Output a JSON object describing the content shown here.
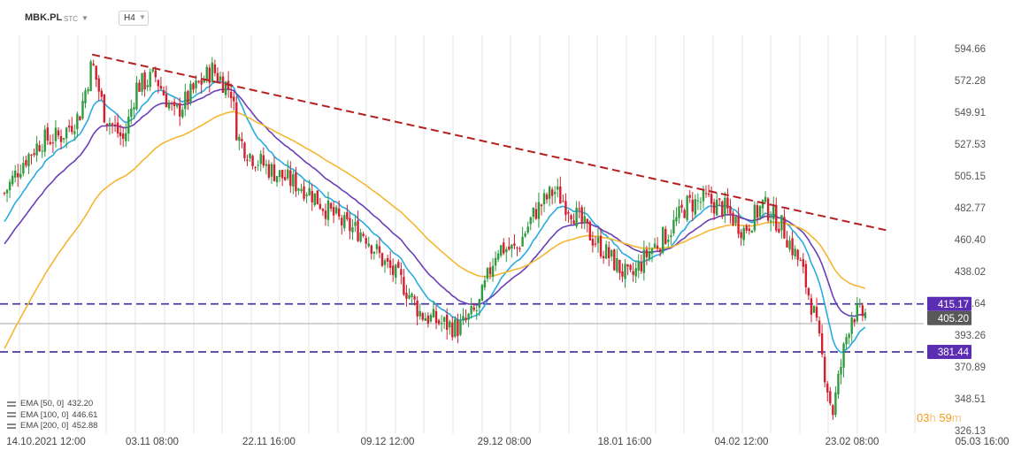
{
  "header": {
    "ticker": "MBK.PL",
    "source": "STC",
    "timeframe": "H4",
    "caret_icon": "chevron-down-icon"
  },
  "legend": [
    {
      "label": "EMA [50, 0]",
      "value": "432.20",
      "icon": "visibility-icon"
    },
    {
      "label": "EMA [100, 0]",
      "value": "446.61",
      "icon": "visibility-icon"
    },
    {
      "label": "EMA [200, 0]",
      "value": "452.88",
      "icon": "visibility-icon"
    }
  ],
  "timer": {
    "hours": "03",
    "h_unit": "h",
    "minutes": "59",
    "m_unit": "m"
  },
  "colors": {
    "bull": "#2e9c3e",
    "bear": "#d2202f",
    "ema50": "#29abe2",
    "ema100": "#6a3fb8",
    "ema200": "#f5b733",
    "trendline": "#b51f1f",
    "level_line": "#4b3aa8",
    "level_badge": "#5b2db3",
    "price_badge": "#595959"
  },
  "chart_data": {
    "type": "candlestick",
    "y_ticks": [
      "594.66",
      "572.28",
      "549.91",
      "527.53",
      "505.15",
      "482.77",
      "460.40",
      "438.02",
      "415.64",
      "393.26",
      "370.89",
      "348.51",
      "326.13"
    ],
    "x_ticks": [
      "14.10.2021  12:00",
      "03.11  08:00",
      "22.11  16:00",
      "09.12  12:00",
      "29.12  08:00",
      "18.01  16:00",
      "04.02  12:00",
      "23.02  08:00",
      "05.03  16:00"
    ],
    "ylim": [
      326.13,
      594.66
    ],
    "current_price": "405.20",
    "levels": [
      {
        "label": "415.17",
        "value": 415.17
      },
      {
        "label": "381.44",
        "value": 381.44
      }
    ],
    "trendline": {
      "from": {
        "x": "2021-10-28",
        "y": 590.5
      },
      "to": {
        "x": "2022-03-03",
        "y": 466.5
      }
    },
    "series": [
      {
        "name": "EMA [50, 0]",
        "value": "432.20"
      },
      {
        "name": "EMA [100, 0]",
        "value": "446.61"
      },
      {
        "name": "EMA [200, 0]",
        "value": "452.88"
      }
    ],
    "price_path": [
      [
        "2021-10-14",
        492
      ],
      [
        "2021-10-17",
        515
      ],
      [
        "2021-10-20",
        530
      ],
      [
        "2021-10-23",
        533
      ],
      [
        "2021-10-26",
        548
      ],
      [
        "2021-10-28",
        585
      ],
      [
        "2021-10-30",
        548
      ],
      [
        "2021-11-02",
        530
      ],
      [
        "2021-11-04",
        568
      ],
      [
        "2021-11-07",
        575
      ],
      [
        "2021-11-10",
        548
      ],
      [
        "2021-11-13",
        565
      ],
      [
        "2021-11-16",
        580
      ],
      [
        "2021-11-19",
        565
      ],
      [
        "2021-11-20",
        532
      ],
      [
        "2021-11-22",
        520
      ],
      [
        "2021-11-25",
        510
      ],
      [
        "2021-11-28",
        502
      ],
      [
        "2021-12-01",
        496
      ],
      [
        "2021-12-04",
        482
      ],
      [
        "2021-12-07",
        470
      ],
      [
        "2021-12-10",
        465
      ],
      [
        "2021-12-13",
        445
      ],
      [
        "2021-12-16",
        430
      ],
      [
        "2021-12-19",
        408
      ],
      [
        "2021-12-22",
        402
      ],
      [
        "2021-12-25",
        398
      ],
      [
        "2021-12-28",
        412
      ],
      [
        "2021-12-31",
        455
      ],
      [
        "2022-01-03",
        453
      ],
      [
        "2022-01-06",
        480
      ],
      [
        "2022-01-09",
        495
      ],
      [
        "2022-01-12",
        480
      ],
      [
        "2022-01-15",
        462
      ],
      [
        "2022-01-18",
        447
      ],
      [
        "2022-01-21",
        432
      ],
      [
        "2022-01-24",
        452
      ],
      [
        "2022-01-27",
        465
      ],
      [
        "2022-01-30",
        485
      ],
      [
        "2022-02-02",
        488
      ],
      [
        "2022-02-05",
        482
      ],
      [
        "2022-02-08",
        467
      ],
      [
        "2022-02-11",
        485
      ],
      [
        "2022-02-14",
        470
      ],
      [
        "2022-02-17",
        442
      ],
      [
        "2022-02-19",
        410
      ],
      [
        "2022-02-21",
        362
      ],
      [
        "2022-02-22",
        338
      ],
      [
        "2022-02-24",
        388
      ],
      [
        "2022-02-25",
        408
      ]
    ]
  }
}
